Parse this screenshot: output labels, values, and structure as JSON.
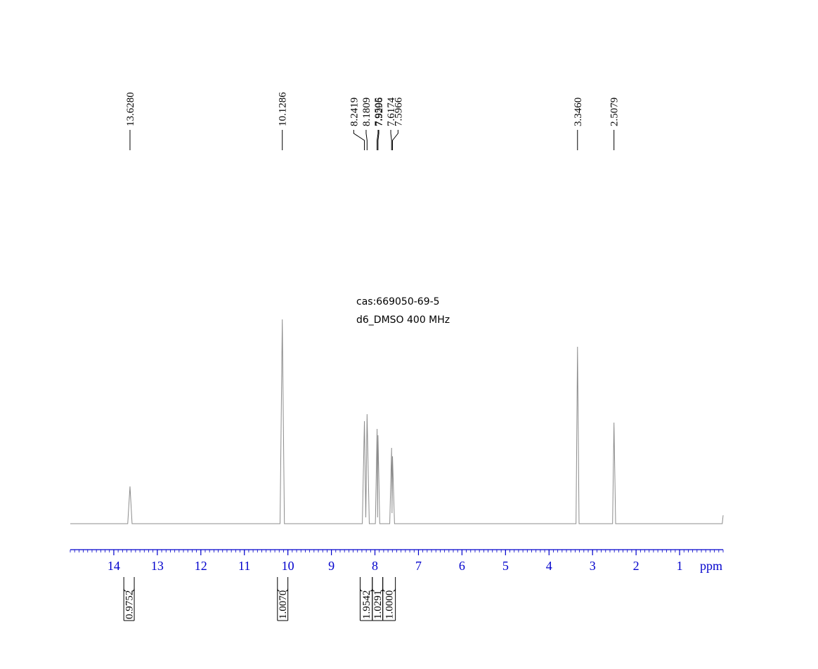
{
  "chart_data": {
    "type": "line",
    "annotations": [
      "cas:669050-69-5",
      "d6_DMSO  400 MHz"
    ],
    "x": [
      15.0,
      13.68,
      13.628,
      13.58,
      10.18,
      10.1286,
      10.08,
      8.29,
      8.2419,
      8.21,
      8.1809,
      8.13,
      7.99,
      7.9505,
      7.94,
      7.9296,
      7.89,
      7.66,
      7.6174,
      7.607,
      7.5966,
      7.55,
      3.38,
      3.346,
      3.31,
      2.54,
      2.5079,
      2.47,
      0.02,
      0
    ],
    "values": [
      0,
      0,
      17.7,
      0,
      0,
      97,
      0,
      0,
      48.7,
      3,
      52,
      0,
      0,
      45,
      3,
      42,
      0,
      0,
      36,
      5,
      32,
      0,
      0,
      84,
      0,
      0,
      48,
      0,
      0,
      4
    ],
    "color": "#8c8c8c",
    "axis_color": "#0000cc",
    "xlim": [
      15,
      0
    ],
    "xticks": [
      14,
      13,
      12,
      11,
      10,
      9,
      8,
      7,
      6,
      5,
      4,
      3,
      2,
      1
    ],
    "minor_tick_interval": 0.1,
    "xlabel": "ppm",
    "ylim": [
      0,
      100
    ],
    "peaks": {
      "values": [
        13.628,
        10.1286,
        8.2419,
        8.1809,
        7.9505,
        7.9296,
        7.6174,
        7.5966,
        3.346,
        2.5079
      ],
      "value_labels": [
        "13.6280",
        "10.1286",
        "8.2419",
        "8.1809",
        "7.9505",
        "7.9296",
        "7.6174",
        "7.5966",
        "3.3460",
        "2.5079"
      ]
    },
    "integrals": {
      "ranges": [
        [
          13.77,
          13.53
        ],
        [
          10.24,
          10.0
        ],
        [
          8.34,
          8.06
        ],
        [
          8.06,
          7.82
        ],
        [
          7.82,
          7.53
        ]
      ],
      "values": [
        0.9752,
        1.007,
        1.9542,
        1.0291,
        1
      ],
      "value_labels": [
        "0.9752",
        "1.0070",
        "1.9542",
        "1.0291",
        "1.0000"
      ]
    }
  }
}
